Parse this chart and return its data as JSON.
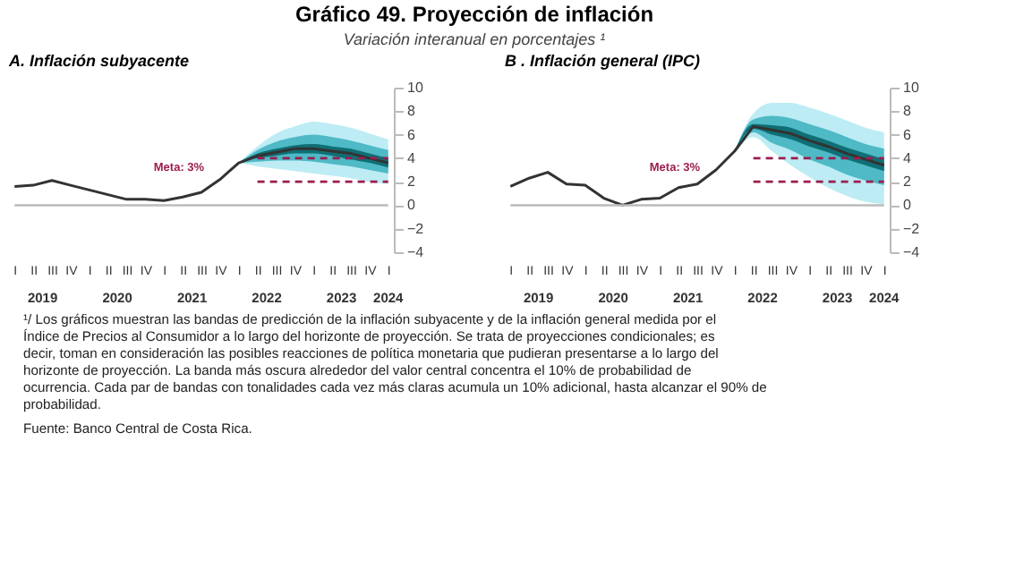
{
  "chart_data": [
    {
      "type": "line",
      "title": "A.   Inflación subyacente",
      "categories": [
        "I",
        "II",
        "III",
        "IV",
        "I",
        "II",
        "III",
        "IV",
        "I",
        "II",
        "III",
        "IV",
        "I",
        "II",
        "III",
        "IV",
        "I",
        "II",
        "III",
        "IV",
        "I"
      ],
      "series": [
        {
          "type": "area",
          "color": "#bdecf4",
          "values": [
            null,
            null,
            null,
            null,
            null,
            null,
            null,
            null,
            null,
            null,
            null,
            null,
            null,
            null,
            null,
            null,
            null,
            null,
            null,
            null,
            null
          ],
          "lower": [
            null,
            null,
            null,
            null,
            null,
            null,
            null,
            null,
            null,
            null,
            null,
            null,
            3.6,
            3.3,
            3.1,
            2.9,
            2.7,
            2.5,
            2.3,
            2.0,
            1.8
          ],
          "upper": [
            null,
            null,
            null,
            null,
            null,
            null,
            null,
            null,
            null,
            null,
            null,
            null,
            3.6,
            5.0,
            6.1,
            6.7,
            7.1,
            6.9,
            6.6,
            6.1,
            5.6
          ]
        },
        {
          "type": "area",
          "color": "#4fb9c6",
          "values": [
            null,
            null,
            null,
            null,
            null,
            null,
            null,
            null,
            null,
            null,
            null,
            null,
            null,
            null,
            null,
            null,
            null,
            null,
            null,
            null,
            null
          ],
          "lower": [
            null,
            null,
            null,
            null,
            null,
            null,
            null,
            null,
            null,
            null,
            null,
            null,
            3.6,
            3.7,
            3.8,
            3.8,
            3.7,
            3.5,
            3.3,
            3.0,
            2.7
          ],
          "upper": [
            null,
            null,
            null,
            null,
            null,
            null,
            null,
            null,
            null,
            null,
            null,
            null,
            3.6,
            4.7,
            5.4,
            5.8,
            6.0,
            5.8,
            5.5,
            5.1,
            4.7
          ]
        },
        {
          "type": "area",
          "color": "#0f6f75",
          "values": [
            null,
            null,
            null,
            null,
            null,
            null,
            null,
            null,
            null,
            null,
            null,
            null,
            null,
            null,
            null,
            null,
            null,
            null,
            null,
            null,
            null
          ],
          "lower": [
            null,
            null,
            null,
            null,
            null,
            null,
            null,
            null,
            null,
            null,
            null,
            null,
            3.6,
            4.0,
            4.2,
            4.4,
            4.4,
            4.2,
            3.9,
            3.6,
            3.2
          ],
          "upper": [
            null,
            null,
            null,
            null,
            null,
            null,
            null,
            null,
            null,
            null,
            null,
            null,
            3.6,
            4.4,
            4.8,
            5.1,
            5.2,
            5.0,
            4.8,
            4.4,
            4.0
          ]
        },
        {
          "type": "line",
          "color": "#333333",
          "values": [
            1.6,
            1.7,
            2.1,
            1.7,
            1.3,
            0.9,
            0.5,
            0.5,
            0.4,
            0.7,
            1.1,
            2.2,
            3.6,
            4.2,
            4.5,
            4.8,
            4.8,
            4.6,
            4.4,
            4.0,
            3.6
          ]
        }
      ],
      "ylim": [
        -4,
        10
      ],
      "yticks": [
        -4,
        -2,
        0,
        2,
        4,
        6,
        8,
        10
      ],
      "grid": false,
      "line_style": "solid",
      "marker": "none",
      "ref_lines": [
        {
          "axis": "y",
          "value": 0,
          "label": null,
          "color": "#bbbbbb",
          "line_style": "solid"
        },
        {
          "axis": "y",
          "value": 4,
          "label": null,
          "color": "#9b1d4f",
          "line_style": "dashed"
        },
        {
          "axis": "y",
          "value": 2,
          "label": null,
          "color": "#9b1d4f",
          "line_style": "dashed"
        }
      ],
      "annotations": [
        "Meta: 3%",
        "2019",
        "2020",
        "2021",
        "2022",
        "2023",
        "2024"
      ]
    },
    {
      "type": "line",
      "title": "B . Inflación general (IPC)",
      "categories": [
        "I",
        "II",
        "III",
        "IV",
        "I",
        "II",
        "III",
        "IV",
        "I",
        "II",
        "III",
        "IV",
        "I",
        "II",
        "III",
        "IV",
        "I",
        "II",
        "III",
        "IV",
        "I"
      ],
      "series": [
        {
          "type": "area",
          "color": "#bdecf4",
          "values": [
            null,
            null,
            null,
            null,
            null,
            null,
            null,
            null,
            null,
            null,
            null,
            null,
            null,
            null,
            null,
            null,
            null,
            null,
            null,
            null,
            null
          ],
          "lower": [
            null,
            null,
            null,
            null,
            null,
            null,
            null,
            null,
            null,
            null,
            null,
            null,
            4.6,
            5.8,
            4.6,
            3.4,
            2.4,
            1.5,
            0.8,
            0.3,
            0.1
          ],
          "upper": [
            null,
            null,
            null,
            null,
            null,
            null,
            null,
            null,
            null,
            null,
            null,
            null,
            4.6,
            7.8,
            8.7,
            8.7,
            8.3,
            7.8,
            7.2,
            6.6,
            6.2
          ]
        },
        {
          "type": "area",
          "color": "#4fb9c6",
          "values": [
            null,
            null,
            null,
            null,
            null,
            null,
            null,
            null,
            null,
            null,
            null,
            null,
            null,
            null,
            null,
            null,
            null,
            null,
            null,
            null,
            null
          ],
          "lower": [
            null,
            null,
            null,
            null,
            null,
            null,
            null,
            null,
            null,
            null,
            null,
            null,
            4.6,
            6.2,
            5.3,
            4.7,
            3.9,
            3.3,
            2.6,
            2.1,
            1.7
          ],
          "upper": [
            null,
            null,
            null,
            null,
            null,
            null,
            null,
            null,
            null,
            null,
            null,
            null,
            4.6,
            7.3,
            7.6,
            7.4,
            6.9,
            6.4,
            5.8,
            5.2,
            4.8
          ]
        },
        {
          "type": "area",
          "color": "#0f6f75",
          "values": [
            null,
            null,
            null,
            null,
            null,
            null,
            null,
            null,
            null,
            null,
            null,
            null,
            null,
            null,
            null,
            null,
            null,
            null,
            null,
            null,
            null
          ],
          "lower": [
            null,
            null,
            null,
            null,
            null,
            null,
            null,
            null,
            null,
            null,
            null,
            null,
            4.6,
            6.5,
            6.0,
            5.6,
            5.0,
            4.5,
            3.9,
            3.4,
            2.9
          ],
          "upper": [
            null,
            null,
            null,
            null,
            null,
            null,
            null,
            null,
            null,
            null,
            null,
            null,
            4.6,
            6.9,
            6.8,
            6.6,
            6.0,
            5.5,
            4.9,
            4.4,
            3.9
          ]
        },
        {
          "type": "line",
          "color": "#333333",
          "values": [
            1.6,
            2.3,
            2.8,
            1.8,
            1.7,
            0.6,
            0.0,
            0.5,
            0.6,
            1.5,
            1.8,
            3.0,
            4.6,
            6.7,
            6.4,
            6.1,
            5.5,
            5.0,
            4.4,
            3.9,
            3.4
          ]
        }
      ],
      "ylim": [
        -4,
        10
      ],
      "yticks": [
        -4,
        -2,
        0,
        2,
        4,
        6,
        8,
        10
      ],
      "grid": false,
      "line_style": "solid",
      "marker": "none",
      "ref_lines": [
        {
          "axis": "y",
          "value": 0,
          "label": null,
          "color": "#bbbbbb",
          "line_style": "solid"
        },
        {
          "axis": "y",
          "value": 4,
          "label": null,
          "color": "#9b1d4f",
          "line_style": "dashed"
        },
        {
          "axis": "y",
          "value": 2,
          "label": null,
          "color": "#9b1d4f",
          "line_style": "dashed"
        }
      ],
      "annotations": [
        "Meta: 3%",
        "2019",
        "2020",
        "2021",
        "2022",
        "2023",
        "2024"
      ]
    },
    {
      "type": "other",
      "title": "Gráfico 49. Proyección de inflación",
      "subtitle": "Variación interanual en porcentajes ¹",
      "annotations": [
        "¹/ Los gráficos muestran las bandas de predicción de la inflación subyacente y de la inflación general medida por el Índice de Precios al Consumidor a lo largo del horizonte de proyección. Se trata de proyecciones condicionales; es decir, toman en consideración las posibles reacciones de política monetaria que pudieran presentarse a lo largo del horizonte de proyección. La banda más oscura alrededor del valor central concentra el 10% de probabilidad de ocurrencia. Cada par de bandas con tonalidades cada vez más claras acumula un 10% adicional, hasta alcanzar el 90% de probabilidad.",
        "Fuente: Banco Central de Costa Rica."
      ]
    }
  ]
}
